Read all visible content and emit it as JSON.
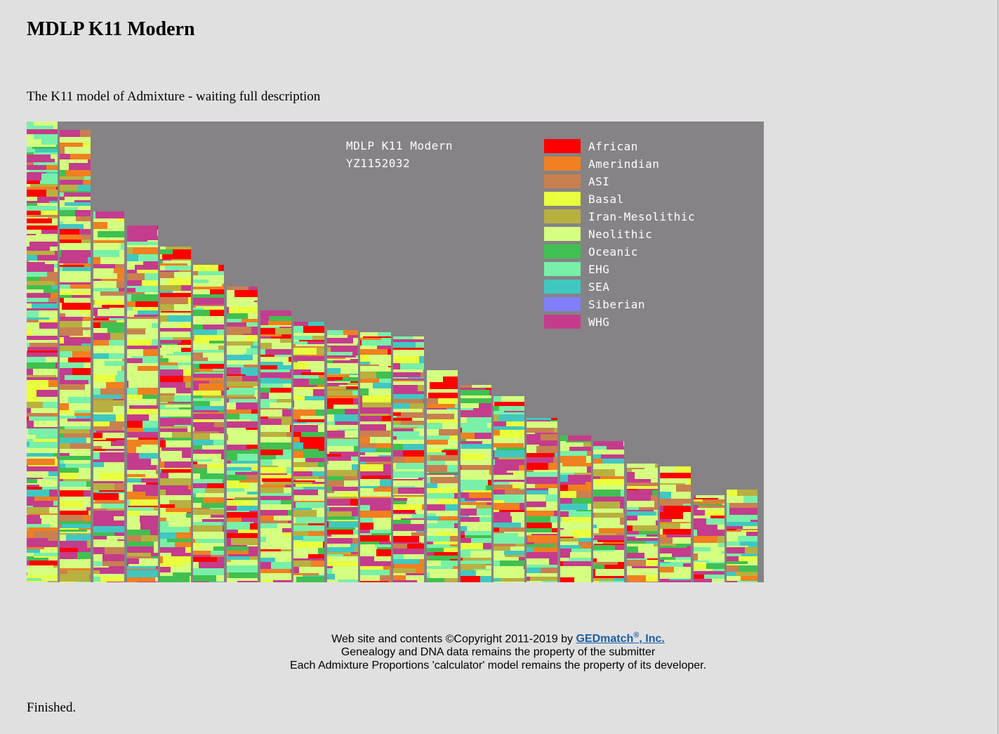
{
  "page": {
    "title": "MDLP K11 Modern",
    "description": "The K11 model of Admixture - waiting full description",
    "status": "Finished."
  },
  "chart": {
    "title_line1": "MDLP K11 Modern",
    "title_line2": "YZ1152032",
    "background_color": "#858385",
    "legend": [
      {
        "label": "African",
        "color": "#ff0000"
      },
      {
        "label": "Amerindian",
        "color": "#f08020"
      },
      {
        "label": "ASI",
        "color": "#c88050"
      },
      {
        "label": "Basal",
        "color": "#eaff3c"
      },
      {
        "label": "Iran-Mesolithic",
        "color": "#b8b040"
      },
      {
        "label": "Neolithic",
        "color": "#d4ff80"
      },
      {
        "label": "Oceanic",
        "color": "#40c050"
      },
      {
        "label": "EHG",
        "color": "#78f0a8"
      },
      {
        "label": "SEA",
        "color": "#40c8c0"
      },
      {
        "label": "Siberian",
        "color": "#8080ff"
      },
      {
        "label": "WHG",
        "color": "#c43c8c"
      }
    ]
  },
  "footer": {
    "line1_prefix": "Web site and contents ©Copyright 2011-2019 by ",
    "link_text": "GEDmatch",
    "link_sup": "®",
    "link_suffix": ", Inc.",
    "line2": "Genealogy and DNA data remains the property of the submitter",
    "line3": "Each Admixture Proportions 'calculator' model remains the property of its developer."
  }
}
